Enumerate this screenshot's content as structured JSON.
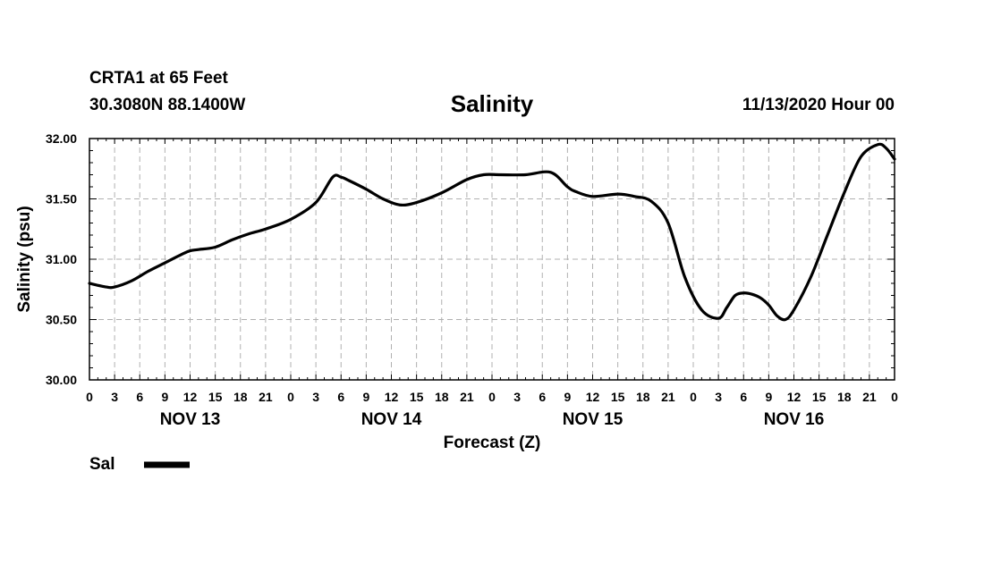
{
  "header": {
    "station": "CRTA1 at 65 Feet",
    "coords": "30.3080N 88.1400W",
    "title": "Salinity",
    "runtime": "11/13/2020 Hour 00"
  },
  "legend": {
    "label": "Sal"
  },
  "colors": {
    "line": "#000000",
    "grid": "#b0b0b0"
  },
  "chart_data": {
    "type": "line",
    "title": "Salinity",
    "xlabel": "Forecast (Z)",
    "ylabel": "Salinity (psu)",
    "ylim": [
      30.0,
      32.0
    ],
    "yticks": [
      "30.00",
      "30.50",
      "31.00",
      "31.50",
      "32.00"
    ],
    "xlim_hours": [
      0,
      96
    ],
    "xtick_labels": [
      "0",
      "3",
      "6",
      "9",
      "12",
      "15",
      "18",
      "21",
      "0",
      "3",
      "6",
      "9",
      "12",
      "15",
      "18",
      "21",
      "0",
      "3",
      "6",
      "9",
      "12",
      "15",
      "18",
      "21",
      "0",
      "3",
      "6",
      "9",
      "12",
      "15",
      "18",
      "21",
      "0"
    ],
    "day_labels": [
      "NOV 13",
      "NOV 14",
      "NOV 15",
      "NOV 16"
    ],
    "grid": true,
    "legend_position": "bottom-left",
    "series": [
      {
        "name": "Sal",
        "x": [
          0,
          2,
          3,
          5,
          7,
          9,
          11,
          12,
          13,
          15,
          17,
          19,
          21,
          24,
          27,
          29,
          30,
          31,
          33,
          35,
          37,
          39,
          42,
          45,
          47,
          49,
          52,
          55,
          57,
          58,
          60,
          63,
          65,
          67,
          69,
          71,
          73,
          75,
          76,
          77,
          78,
          79,
          80,
          81,
          82,
          83,
          84,
          86,
          88,
          90,
          92,
          94,
          95,
          96
        ],
        "y": [
          30.8,
          30.77,
          30.77,
          30.82,
          30.9,
          30.97,
          31.04,
          31.07,
          31.08,
          31.1,
          31.16,
          31.21,
          31.25,
          31.33,
          31.47,
          31.68,
          31.68,
          31.65,
          31.58,
          31.5,
          31.45,
          31.47,
          31.55,
          31.66,
          31.7,
          31.7,
          31.7,
          31.72,
          31.6,
          31.56,
          31.52,
          31.54,
          31.52,
          31.48,
          31.3,
          30.85,
          30.58,
          30.51,
          30.6,
          30.7,
          30.72,
          30.71,
          30.68,
          30.62,
          30.53,
          30.5,
          30.58,
          30.85,
          31.2,
          31.55,
          31.85,
          31.95,
          31.92,
          31.83
        ]
      }
    ]
  }
}
